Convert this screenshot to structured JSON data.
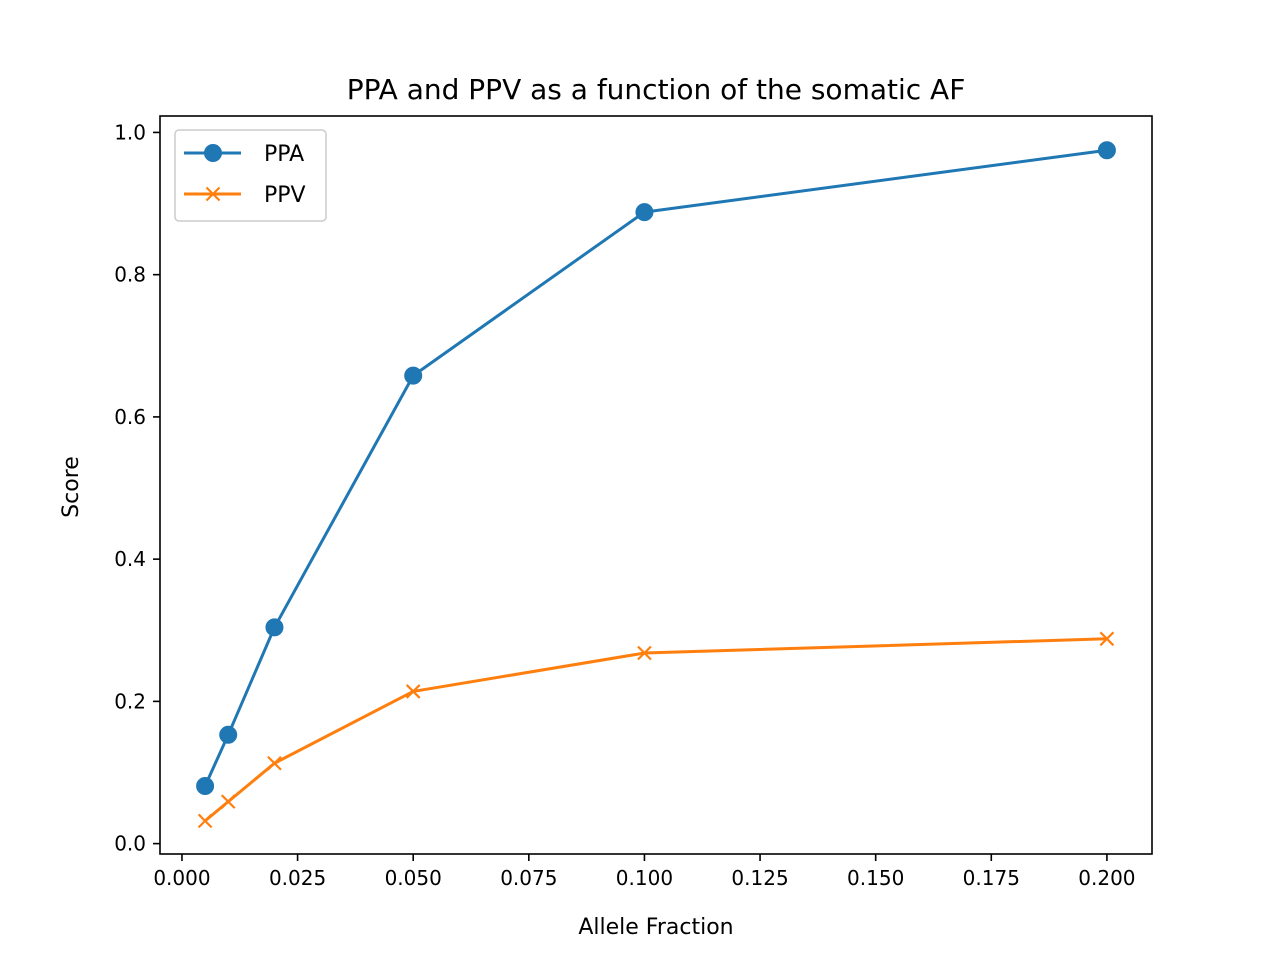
{
  "chart_data": {
    "type": "line",
    "title": "PPA and PPV as a function of the somatic AF",
    "xlabel": "Allele Fraction",
    "ylabel": "Score",
    "x": [
      0.005,
      0.01,
      0.02,
      0.05,
      0.1,
      0.2
    ],
    "xlim": [
      -0.00475,
      0.20975
    ],
    "ylim": [
      -0.0146,
      1.0231
    ],
    "xticks": [
      "0.000",
      "0.025",
      "0.050",
      "0.075",
      "0.100",
      "0.125",
      "0.150",
      "0.175",
      "0.200"
    ],
    "xtick_values": [
      0,
      0.025,
      0.05,
      0.075,
      0.1,
      0.125,
      0.15,
      0.175,
      0.2
    ],
    "yticks": [
      "0.0",
      "0.2",
      "0.4",
      "0.6",
      "0.8",
      "1.0"
    ],
    "ytick_values": [
      0,
      0.2,
      0.4,
      0.6,
      0.8,
      1.0
    ],
    "grid": false,
    "legend_position": "upper left",
    "series": [
      {
        "name": "PPA",
        "marker": "circle",
        "color": "#1f77b4",
        "values": [
          0.081,
          0.153,
          0.304,
          0.658,
          0.888,
          0.975
        ]
      },
      {
        "name": "PPV",
        "marker": "x",
        "color": "#ff7f0e",
        "values": [
          0.032,
          0.059,
          0.113,
          0.214,
          0.268,
          0.288
        ]
      }
    ]
  }
}
